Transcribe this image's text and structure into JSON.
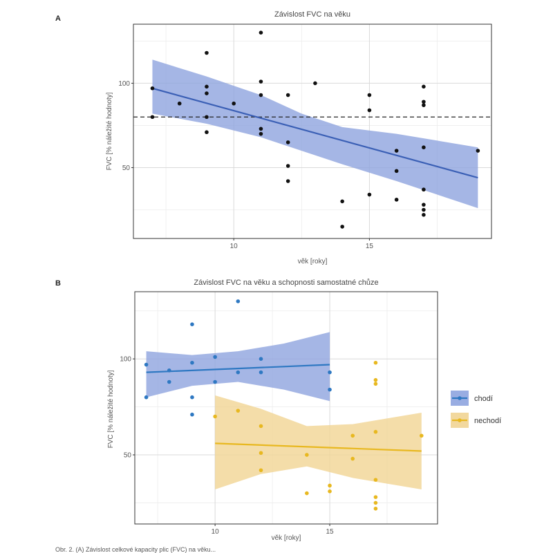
{
  "caption": "Obr. 2. (A) Závislost celkové kapacity plic (FVC) na věku...",
  "charts": [
    {
      "panel": "A",
      "type": "scatter",
      "title": "Závislost FVC na věku",
      "xlabel": "věk [roky]",
      "ylabel": "FVC [% náležité hodnoty]",
      "xlim": [
        6.3,
        19.5
      ],
      "ylim": [
        8,
        135
      ],
      "xticks": [
        10,
        15
      ],
      "yticks": [
        50,
        100
      ],
      "reference_line": 80,
      "colors": {
        "line": "#3a5fb5",
        "band": "#8ea4df",
        "point": "#111111"
      },
      "series": [
        {
          "points": [
            [
              7,
              97
            ],
            [
              7,
              80
            ],
            [
              8,
              88
            ],
            [
              9,
              118
            ],
            [
              9,
              98
            ],
            [
              9,
              94
            ],
            [
              9,
              80
            ],
            [
              9,
              71
            ],
            [
              10,
              88
            ],
            [
              11,
              130
            ],
            [
              11,
              101
            ],
            [
              11,
              93
            ],
            [
              11,
              73
            ],
            [
              11,
              70
            ],
            [
              12,
              93
            ],
            [
              12,
              65
            ],
            [
              12,
              51
            ],
            [
              12,
              42
            ],
            [
              13,
              100
            ],
            [
              14,
              30
            ],
            [
              14,
              15
            ],
            [
              15,
              93
            ],
            [
              15,
              84
            ],
            [
              15,
              34
            ],
            [
              16,
              60
            ],
            [
              16,
              48
            ],
            [
              16,
              31
            ],
            [
              17,
              98
            ],
            [
              17,
              89
            ],
            [
              17,
              87
            ],
            [
              17,
              62
            ],
            [
              17,
              37
            ],
            [
              17,
              28
            ],
            [
              17,
              25
            ],
            [
              17,
              22
            ],
            [
              19,
              60
            ]
          ],
          "fit": [
            [
              7,
              97
            ],
            [
              19,
              44
            ]
          ],
          "band_upper": [
            [
              7,
              114
            ],
            [
              9,
              104
            ],
            [
              11,
              93
            ],
            [
              12.5,
              82
            ],
            [
              14,
              74
            ],
            [
              16,
              70
            ],
            [
              17.5,
              66
            ],
            [
              19,
              62
            ]
          ],
          "band_lower": [
            [
              7,
              82
            ],
            [
              9,
              76
            ],
            [
              11,
              68
            ],
            [
              12.5,
              60
            ],
            [
              14,
              52
            ],
            [
              16,
              42
            ],
            [
              17.5,
              34
            ],
            [
              19,
              26
            ]
          ]
        }
      ]
    },
    {
      "panel": "B",
      "type": "scatter",
      "title": "Závislost FVC na věku a schopnosti samostatné chůze",
      "xlabel": "věk [roky]",
      "ylabel": "FVC [% náležité hodnoty]",
      "xlim": [
        6.5,
        19.7
      ],
      "ylim": [
        14,
        135
      ],
      "xticks": [
        10,
        15
      ],
      "yticks": [
        50,
        100
      ],
      "legend": {
        "position": "right"
      },
      "series": [
        {
          "name": "chodí",
          "color": "#2e78c2",
          "band_color": "#8ea4df",
          "points": [
            [
              7,
              97
            ],
            [
              7,
              80
            ],
            [
              8,
              94
            ],
            [
              8,
              88
            ],
            [
              9,
              118
            ],
            [
              9,
              98
            ],
            [
              9,
              80
            ],
            [
              9,
              71
            ],
            [
              10,
              101
            ],
            [
              10,
              88
            ],
            [
              11,
              130
            ],
            [
              11,
              93
            ],
            [
              12,
              100
            ],
            [
              12,
              93
            ],
            [
              15,
              93
            ],
            [
              15,
              84
            ]
          ],
          "fit": [
            [
              7,
              93
            ],
            [
              15,
              97
            ]
          ],
          "band_upper": [
            [
              7,
              104
            ],
            [
              9,
              102
            ],
            [
              11,
              104
            ],
            [
              13,
              108
            ],
            [
              15,
              114
            ]
          ],
          "band_lower": [
            [
              7,
              80
            ],
            [
              9,
              86
            ],
            [
              11,
              88
            ],
            [
              13,
              84
            ],
            [
              15,
              78
            ]
          ]
        },
        {
          "name": "nechodí",
          "color": "#e8b820",
          "band_color": "#f1d493",
          "points": [
            [
              10,
              70
            ],
            [
              11,
              73
            ],
            [
              12,
              65
            ],
            [
              12,
              51
            ],
            [
              12,
              42
            ],
            [
              14,
              50
            ],
            [
              14,
              30
            ],
            [
              15,
              34
            ],
            [
              15,
              31
            ],
            [
              16,
              60
            ],
            [
              16,
              48
            ],
            [
              17,
              98
            ],
            [
              17,
              89
            ],
            [
              17,
              87
            ],
            [
              17,
              62
            ],
            [
              17,
              37
            ],
            [
              17,
              28
            ],
            [
              17,
              25
            ],
            [
              17,
              22
            ],
            [
              19,
              60
            ]
          ],
          "fit": [
            [
              10,
              56
            ],
            [
              19,
              52
            ]
          ],
          "band_upper": [
            [
              10,
              81
            ],
            [
              12,
              74
            ],
            [
              14,
              65
            ],
            [
              16,
              66
            ],
            [
              19,
              72
            ]
          ],
          "band_lower": [
            [
              10,
              32
            ],
            [
              12,
              40
            ],
            [
              14,
              44
            ],
            [
              16,
              38
            ],
            [
              19,
              32
            ]
          ]
        }
      ]
    }
  ]
}
